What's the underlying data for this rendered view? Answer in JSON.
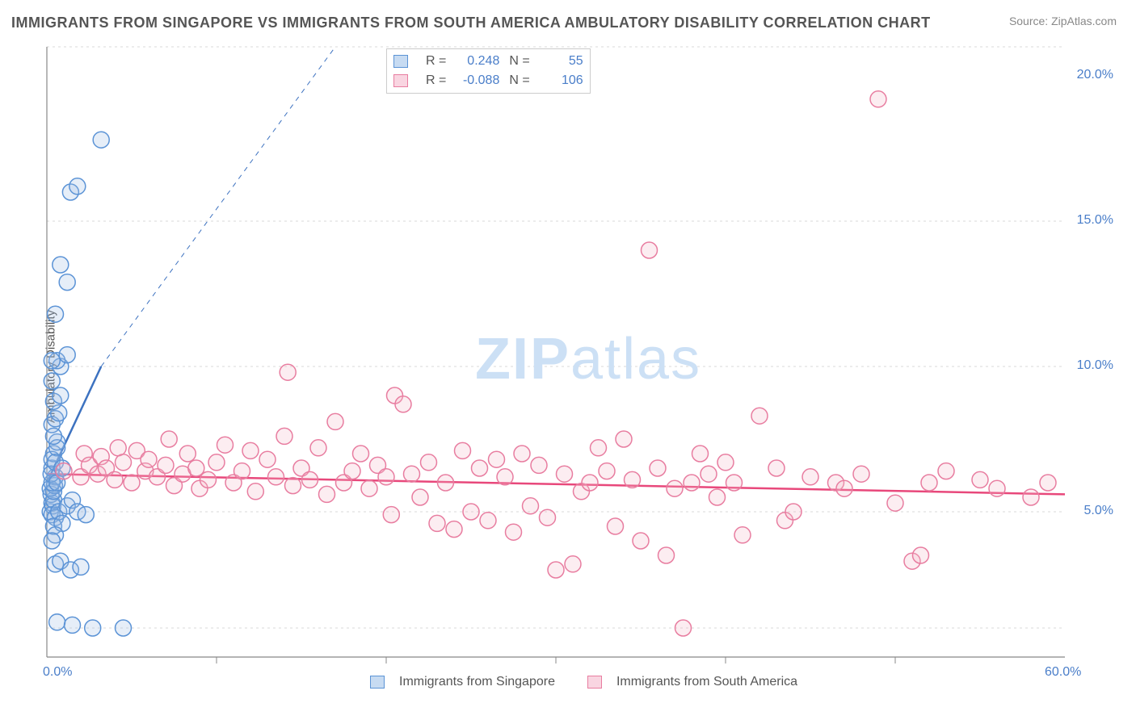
{
  "title": "IMMIGRANTS FROM SINGAPORE VS IMMIGRANTS FROM SOUTH AMERICA AMBULATORY DISABILITY CORRELATION CHART",
  "source": "Source: ZipAtlas.com",
  "yaxis_label": "Ambulatory Disability",
  "watermark_bold": "ZIP",
  "watermark_light": "atlas",
  "chart": {
    "type": "scatter",
    "plot_bg": "#ffffff",
    "grid_color": "#d8d8d8",
    "axis_color": "#cccccc",
    "frame_color": "#888888",
    "xlim": [
      0,
      60
    ],
    "ylim": [
      0,
      21
    ],
    "x_ticks": [
      0,
      60
    ],
    "x_tick_labels": [
      "0.0%",
      "60.0%"
    ],
    "x_minor_ticks": [
      10,
      20,
      30,
      40,
      50
    ],
    "y_ticks": [
      5,
      10,
      15,
      20
    ],
    "y_tick_labels": [
      "5.0%",
      "10.0%",
      "15.0%",
      "20.0%"
    ],
    "y_grid": [
      1,
      5,
      10,
      15,
      21
    ],
    "marker_radius": 10,
    "marker_stroke_width": 1.5,
    "marker_fill_opacity": 0.25,
    "series": [
      {
        "name": "Immigrants from Singapore",
        "label": "Immigrants from Singapore",
        "color_stroke": "#5b93d6",
        "color_fill": "#9bbce4",
        "R": "0.248",
        "N": "55",
        "trend": {
          "x1": 0,
          "y1": 6.0,
          "x2": 3.2,
          "y2": 10.0,
          "dash_x2": 17,
          "dash_y2": 21,
          "color": "#3d72c0",
          "width": 2.5
        },
        "points": [
          [
            0.2,
            5.0
          ],
          [
            0.3,
            5.3
          ],
          [
            0.25,
            5.6
          ],
          [
            0.35,
            5.2
          ],
          [
            0.3,
            4.9
          ],
          [
            0.4,
            5.4
          ],
          [
            0.2,
            5.8
          ],
          [
            0.45,
            5.9
          ],
          [
            0.5,
            6.2
          ],
          [
            0.3,
            6.5
          ],
          [
            0.4,
            7.0
          ],
          [
            0.6,
            7.4
          ],
          [
            0.3,
            8.0
          ],
          [
            0.5,
            8.2
          ],
          [
            0.7,
            8.4
          ],
          [
            0.4,
            8.8
          ],
          [
            0.8,
            10.0
          ],
          [
            0.6,
            10.2
          ],
          [
            1.2,
            10.4
          ],
          [
            0.3,
            10.2
          ],
          [
            0.5,
            11.8
          ],
          [
            1.2,
            12.9
          ],
          [
            0.8,
            13.5
          ],
          [
            1.4,
            16.0
          ],
          [
            1.8,
            16.2
          ],
          [
            3.2,
            17.8
          ],
          [
            0.5,
            4.8
          ],
          [
            0.7,
            5.0
          ],
          [
            1.2,
            5.2
          ],
          [
            1.5,
            5.4
          ],
          [
            0.4,
            4.5
          ],
          [
            0.9,
            4.6
          ],
          [
            1.8,
            5.0
          ],
          [
            2.3,
            4.9
          ],
          [
            0.5,
            3.2
          ],
          [
            0.8,
            3.3
          ],
          [
            1.4,
            3.0
          ],
          [
            2.0,
            3.1
          ],
          [
            0.6,
            1.2
          ],
          [
            1.5,
            1.1
          ],
          [
            2.7,
            1.0
          ],
          [
            4.5,
            1.0
          ],
          [
            0.3,
            6.8
          ],
          [
            0.6,
            7.2
          ],
          [
            0.4,
            7.6
          ],
          [
            0.8,
            9.0
          ],
          [
            0.3,
            9.5
          ],
          [
            0.5,
            4.2
          ],
          [
            0.3,
            4.0
          ],
          [
            0.4,
            5.7
          ],
          [
            0.3,
            6.0
          ],
          [
            0.25,
            6.3
          ],
          [
            0.5,
            6.7
          ],
          [
            0.6,
            6.0
          ],
          [
            0.9,
            6.5
          ]
        ]
      },
      {
        "name": "Immigrants from South America",
        "label": "Immigrants from South America",
        "color_stroke": "#e87da0",
        "color_fill": "#f4b6c9",
        "R": "-0.088",
        "N": "106",
        "trend": {
          "x1": 0,
          "y1": 6.3,
          "x2": 60,
          "y2": 5.6,
          "color": "#e8487b",
          "width": 2.5
        },
        "points": [
          [
            1,
            6.4
          ],
          [
            2,
            6.2
          ],
          [
            2.2,
            7.0
          ],
          [
            2.5,
            6.6
          ],
          [
            3,
            6.3
          ],
          [
            3.2,
            6.9
          ],
          [
            3.5,
            6.5
          ],
          [
            4,
            6.1
          ],
          [
            4.2,
            7.2
          ],
          [
            4.5,
            6.7
          ],
          [
            5,
            6.0
          ],
          [
            5.3,
            7.1
          ],
          [
            5.8,
            6.4
          ],
          [
            6,
            6.8
          ],
          [
            6.5,
            6.2
          ],
          [
            7,
            6.6
          ],
          [
            7.2,
            7.5
          ],
          [
            7.5,
            5.9
          ],
          [
            8,
            6.3
          ],
          [
            8.3,
            7.0
          ],
          [
            8.8,
            6.5
          ],
          [
            9,
            5.8
          ],
          [
            9.5,
            6.1
          ],
          [
            10,
            6.7
          ],
          [
            10.5,
            7.3
          ],
          [
            11,
            6.0
          ],
          [
            11.5,
            6.4
          ],
          [
            12,
            7.1
          ],
          [
            12.3,
            5.7
          ],
          [
            13,
            6.8
          ],
          [
            13.5,
            6.2
          ],
          [
            14,
            7.6
          ],
          [
            14.2,
            9.8
          ],
          [
            14.5,
            5.9
          ],
          [
            15,
            6.5
          ],
          [
            15.5,
            6.1
          ],
          [
            16,
            7.2
          ],
          [
            16.5,
            5.6
          ],
          [
            17,
            8.1
          ],
          [
            17.5,
            6.0
          ],
          [
            18,
            6.4
          ],
          [
            18.5,
            7.0
          ],
          [
            19,
            5.8
          ],
          [
            19.5,
            6.6
          ],
          [
            20,
            6.2
          ],
          [
            20.3,
            4.9
          ],
          [
            20.5,
            9.0
          ],
          [
            21,
            8.7
          ],
          [
            21.5,
            6.3
          ],
          [
            22,
            5.5
          ],
          [
            22.5,
            6.7
          ],
          [
            23,
            4.6
          ],
          [
            23.5,
            6.0
          ],
          [
            24,
            4.4
          ],
          [
            24.5,
            7.1
          ],
          [
            25,
            5.0
          ],
          [
            25.5,
            6.5
          ],
          [
            26,
            4.7
          ],
          [
            26.5,
            6.8
          ],
          [
            27,
            6.2
          ],
          [
            27.5,
            4.3
          ],
          [
            28,
            7.0
          ],
          [
            28.5,
            5.2
          ],
          [
            29,
            6.6
          ],
          [
            29.5,
            4.8
          ],
          [
            30,
            3.0
          ],
          [
            30.5,
            6.3
          ],
          [
            31,
            3.2
          ],
          [
            31.5,
            5.7
          ],
          [
            32,
            6.0
          ],
          [
            32.5,
            7.2
          ],
          [
            33,
            6.4
          ],
          [
            33.5,
            4.5
          ],
          [
            34,
            7.5
          ],
          [
            34.5,
            6.1
          ],
          [
            35,
            4.0
          ],
          [
            35.5,
            14.0
          ],
          [
            36,
            6.5
          ],
          [
            36.5,
            3.5
          ],
          [
            37,
            5.8
          ],
          [
            37.5,
            1.0
          ],
          [
            38,
            6.0
          ],
          [
            38.5,
            7.0
          ],
          [
            39,
            6.3
          ],
          [
            39.5,
            5.5
          ],
          [
            40,
            6.7
          ],
          [
            40.5,
            6.0
          ],
          [
            41,
            4.2
          ],
          [
            42,
            8.3
          ],
          [
            43,
            6.5
          ],
          [
            43.5,
            4.7
          ],
          [
            44,
            5.0
          ],
          [
            45,
            6.2
          ],
          [
            46.5,
            6.0
          ],
          [
            47,
            5.8
          ],
          [
            48,
            6.3
          ],
          [
            49,
            19.2
          ],
          [
            50,
            5.3
          ],
          [
            51,
            3.3
          ],
          [
            51.5,
            3.5
          ],
          [
            52,
            6.0
          ],
          [
            53,
            6.4
          ],
          [
            55,
            6.1
          ],
          [
            56,
            5.8
          ],
          [
            58,
            5.5
          ],
          [
            59,
            6.0
          ]
        ]
      }
    ]
  },
  "stats_box": {
    "rows": [
      {
        "swatch_fill": "#c7dbf2",
        "swatch_stroke": "#5b93d6",
        "R_label": "R =",
        "R": "0.248",
        "N_label": "N =",
        "N": "55"
      },
      {
        "swatch_fill": "#f9d5e1",
        "swatch_stroke": "#e87da0",
        "R_label": "R =",
        "R": "-0.088",
        "N_label": "N =",
        "N": "106"
      }
    ]
  },
  "legend": [
    {
      "swatch_fill": "#c7dbf2",
      "swatch_stroke": "#5b93d6",
      "label": "Immigrants from Singapore"
    },
    {
      "swatch_fill": "#f9d5e1",
      "swatch_stroke": "#e87da0",
      "label": "Immigrants from South America"
    }
  ]
}
